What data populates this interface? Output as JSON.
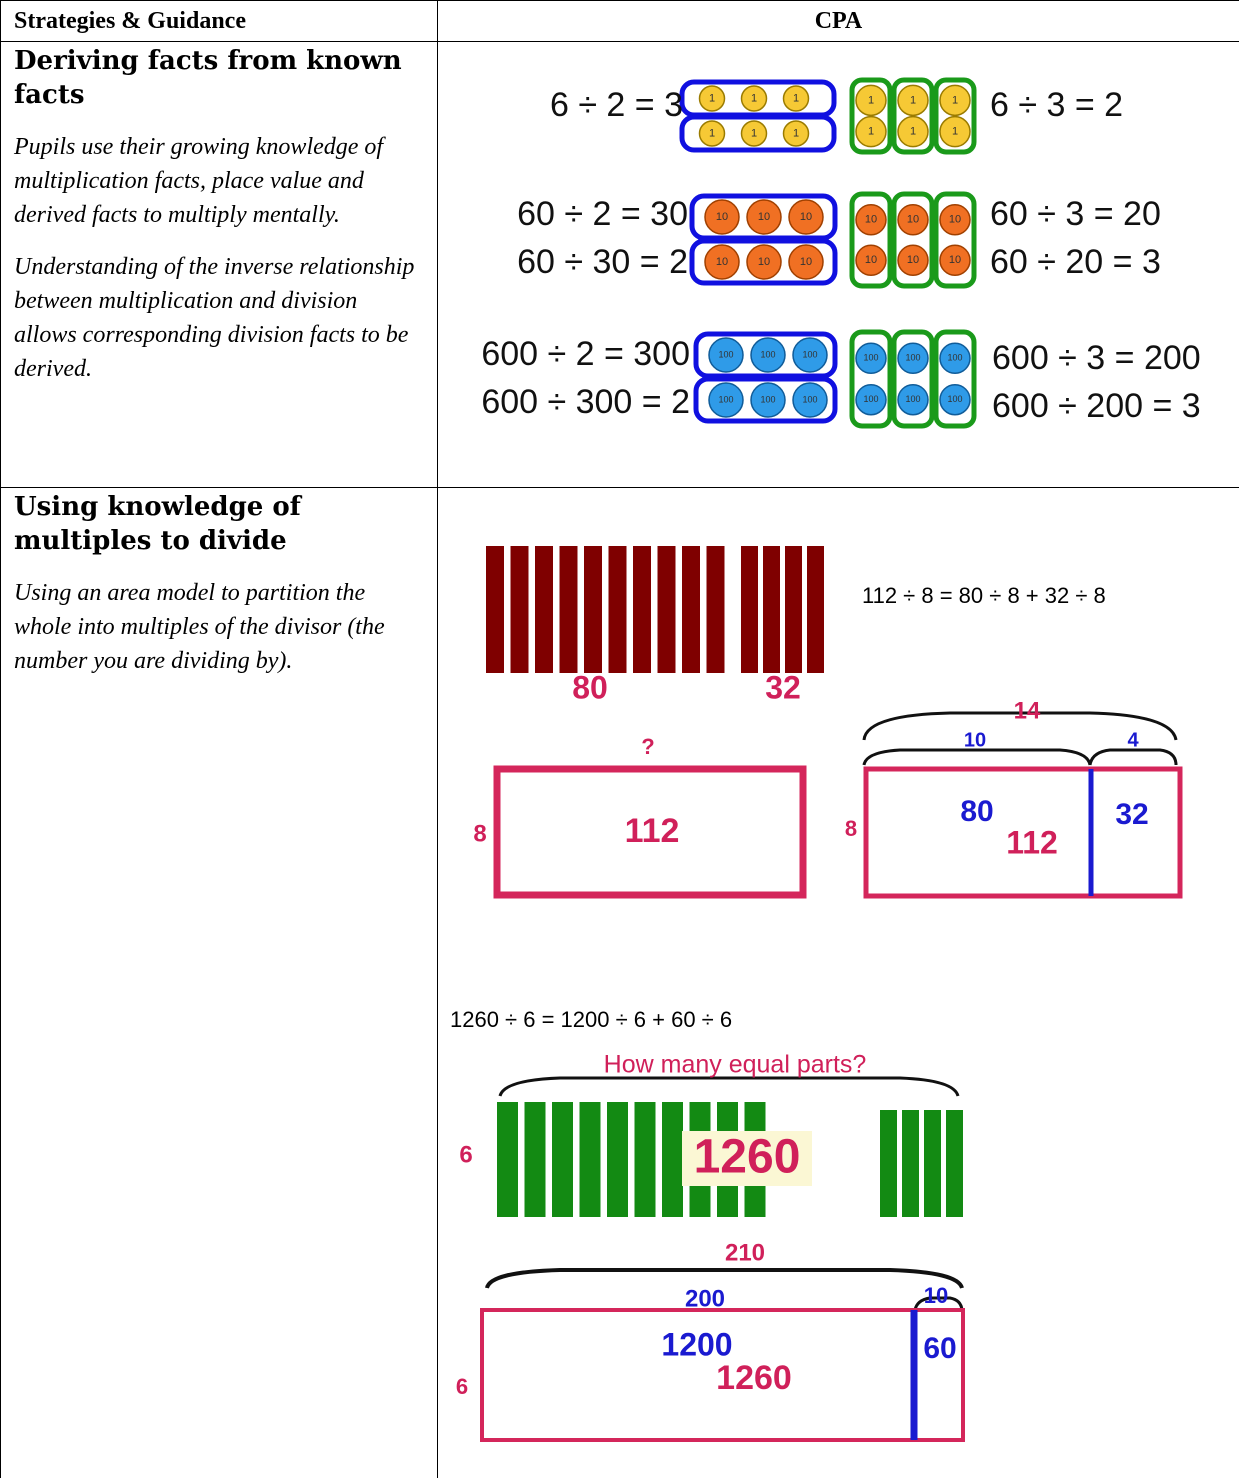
{
  "header": {
    "strategies": "Strategies & Guidance",
    "cpa": "CPA"
  },
  "rows": [
    {
      "title": "Deriving facts from known facts",
      "paragraphs": [
        "Pupils use their growing knowledge of multiplication facts, place value and derived facts to multiply mentally.",
        "Understanding of the inverse relationship between multiplication and division allows corresponding division facts to be derived."
      ],
      "diagram": {
        "groups": [
          {
            "left": [
              "6 ÷ 2 = 3"
            ],
            "right": [
              "6 ÷ 3 = 2"
            ],
            "counter": "1"
          },
          {
            "left": [
              "60 ÷ 2 = 30",
              "60 ÷ 30 = 2"
            ],
            "right": [
              "60 ÷ 3 = 20",
              "60 ÷ 20 = 3"
            ],
            "counter": "10"
          },
          {
            "left": [
              "600 ÷ 2 = 300",
              "600 ÷ 300 = 2"
            ],
            "right": [
              "600 ÷ 3 = 200",
              "600 ÷ 200 = 3"
            ],
            "counter": "100"
          }
        ]
      }
    },
    {
      "title": "Using knowledge of multiples to divide",
      "paragraphs": [
        "Using an area model to partition the whole into multiples of the divisor (the number you are dividing by)."
      ],
      "diagram": {
        "equation_1": "112 ÷ 8 =  80 ÷ 8  +  32 ÷ 8",
        "bar_labels": [
          "80",
          "32"
        ],
        "area_1": {
          "top": "?",
          "side": "8",
          "inside": "112"
        },
        "area_2": {
          "total": "14",
          "parts": [
            "10",
            "4"
          ],
          "side": "8",
          "inside": [
            "80",
            "112"
          ],
          "right": "32"
        },
        "equation_2": "1260 ÷ 6  =  1200 ÷ 6  +  60 ÷ 6",
        "question": "How many equal parts?",
        "bar_side": "6",
        "bar_total": "1260",
        "area_3": {
          "total": "210",
          "parts": [
            "200",
            "10"
          ],
          "side": "6",
          "inside": [
            "1200",
            "1260"
          ],
          "right": "60"
        }
      }
    }
  ]
}
